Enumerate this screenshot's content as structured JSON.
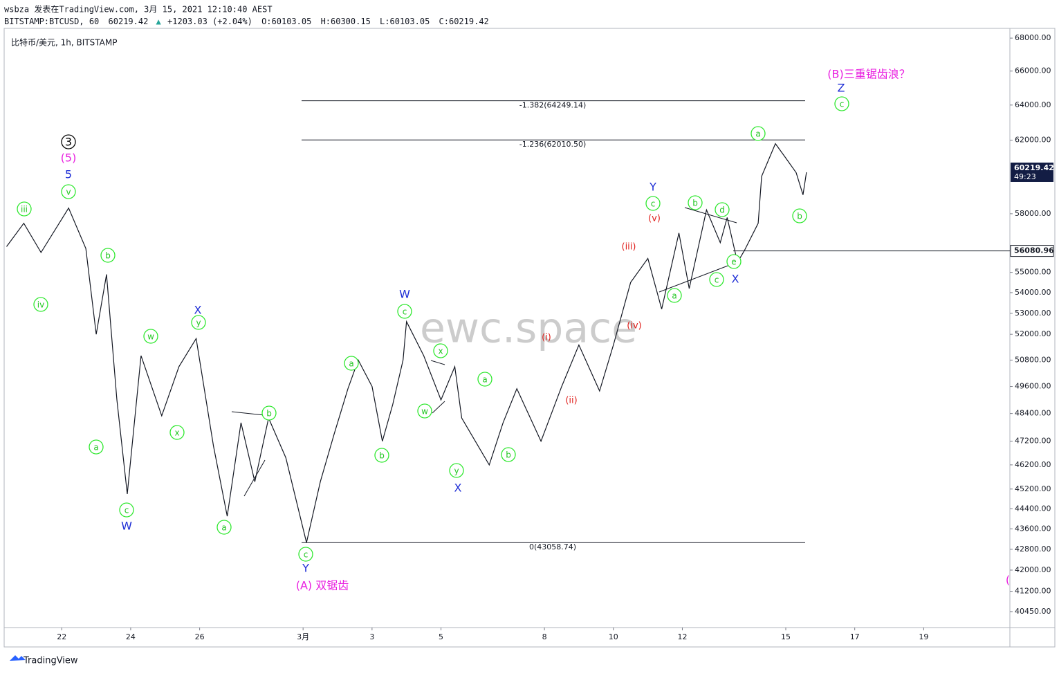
{
  "header": {
    "line1": "wsbza 发表在TradingView.com, 3月 15, 2021 12:10:40 AEST",
    "line2": [
      "BITSTAMP:BTCUSD, 60",
      "60219.42",
      "▲",
      "+1203.03 (+2.04%)",
      "O:60103.05",
      "H:60300.15",
      "L:60103.05",
      "C:60219.42"
    ]
  },
  "symbol": "比特币/美元, 1h, BITSTAMP",
  "watermark": "ewc.space",
  "footer": "TradingView",
  "chart_data": {
    "type": "line",
    "color": "#131722",
    "log_scale": true,
    "x": [
      20.4,
      20.9,
      21.4,
      22.2,
      22.7,
      23.0,
      23.3,
      23.6,
      23.9,
      24.3,
      24.9,
      25.4,
      25.9,
      26.4,
      26.8,
      27.2,
      27.6,
      28.0,
      28.5,
      29.1,
      29.5,
      29.9,
      30.3,
      30.6,
      31.0,
      31.3,
      31.6,
      31.9,
      32.0,
      32.5,
      33.0,
      33.4,
      33.6,
      34.4,
      34.8,
      35.2,
      35.9,
      36.5,
      37.0,
      37.6,
      38.0,
      38.5,
      39.0,
      39.4,
      39.9,
      40.2,
      40.7,
      41.1,
      41.3,
      41.6,
      41.8,
      42.2,
      42.3,
      42.7,
      43.0,
      43.3,
      43.5,
      43.6
    ],
    "values": [
      56300,
      57500,
      56000,
      58300,
      56200,
      52000,
      54900,
      49000,
      45000,
      51000,
      48300,
      50500,
      51800,
      47000,
      44100,
      48000,
      45500,
      48200,
      46500,
      43059,
      45500,
      47500,
      49500,
      50800,
      49600,
      47200,
      48800,
      50800,
      52600,
      51000,
      49000,
      50500,
      48200,
      46200,
      48000,
      49500,
      47200,
      49600,
      51500,
      49400,
      51500,
      54500,
      55700,
      53200,
      57000,
      54200,
      58200,
      56500,
      57800,
      55500,
      56100,
      57500,
      60000,
      61800,
      61000,
      60200,
      59000,
      60219.42
    ],
    "xlim": [
      20.35,
      49.5
    ],
    "ylim": [
      39870,
      68560
    ],
    "xticks": [
      22,
      24,
      26,
      {
        "value": 29,
        "label": "3月"
      },
      {
        "value": 31,
        "label": "3"
      },
      {
        "value": 33,
        "label": "5"
      },
      {
        "value": 36,
        "label": "8"
      },
      {
        "value": 38,
        "label": "10"
      },
      {
        "value": 40,
        "label": "12"
      },
      {
        "value": 43,
        "label": "15"
      },
      {
        "value": 45,
        "label": "17"
      },
      {
        "value": 47,
        "label": "19"
      }
    ],
    "yticks": [
      {
        "value": 68000,
        "label": "68000.00"
      },
      {
        "value": 66000,
        "label": "66000.00"
      },
      {
        "value": 64000,
        "label": "64000.00"
      },
      {
        "value": 62000,
        "label": "62000.00"
      },
      {
        "value": 58000,
        "label": "58000.00"
      },
      {
        "value": 55000,
        "label": "55000.00"
      },
      {
        "value": 54000,
        "label": "54000.00"
      },
      {
        "value": 53000,
        "label": "53000.00"
      },
      {
        "value": 52000,
        "label": "52000.00"
      },
      {
        "value": 50800,
        "label": "50800.00"
      },
      {
        "value": 49600,
        "label": "49600.00"
      },
      {
        "value": 48400,
        "label": "48400.00"
      },
      {
        "value": 47200,
        "label": "47200.00"
      },
      {
        "value": 46200,
        "label": "46200.00"
      },
      {
        "value": 45200,
        "label": "45200.00"
      },
      {
        "value": 44400,
        "label": "44400.00"
      },
      {
        "value": 43600,
        "label": "43600.00"
      },
      {
        "value": 42800,
        "label": "42800.00"
      },
      {
        "value": 42000,
        "label": "42000.00"
      },
      {
        "value": 41200,
        "label": "41200.00"
      },
      {
        "value": 40450,
        "label": "40450.00"
      }
    ],
    "fib_levels": [
      {
        "value": 64249.14,
        "label": "-1.382(64249.14)"
      },
      {
        "value": 62010.5,
        "label": "-1.236(62010.50)"
      },
      {
        "value": 43058.74,
        "label": "0(43058.74)"
      }
    ],
    "level_line": 56080.96,
    "last_price": 60219.42,
    "countdown": "49:23"
  },
  "annotations": [
    "iii",
    "iv",
    "v",
    "b",
    "a",
    "c",
    "w",
    "x",
    "y",
    "a",
    "b",
    "c",
    "a",
    "b",
    "c",
    "x",
    "w",
    "y",
    "a",
    "b",
    "c",
    "a",
    "b",
    "d",
    "c",
    "e",
    "a",
    "b",
    "c",
    "3",
    "(5)",
    "(A) 双锯齿",
    "(B)三重锯齿浪？",
    "5",
    "W",
    "X",
    "Y",
    "W",
    "X",
    "Y",
    "X",
    "Z",
    "(i)",
    "(ii)",
    "(iii)",
    "(iv)",
    "(v)",
    "("
  ]
}
